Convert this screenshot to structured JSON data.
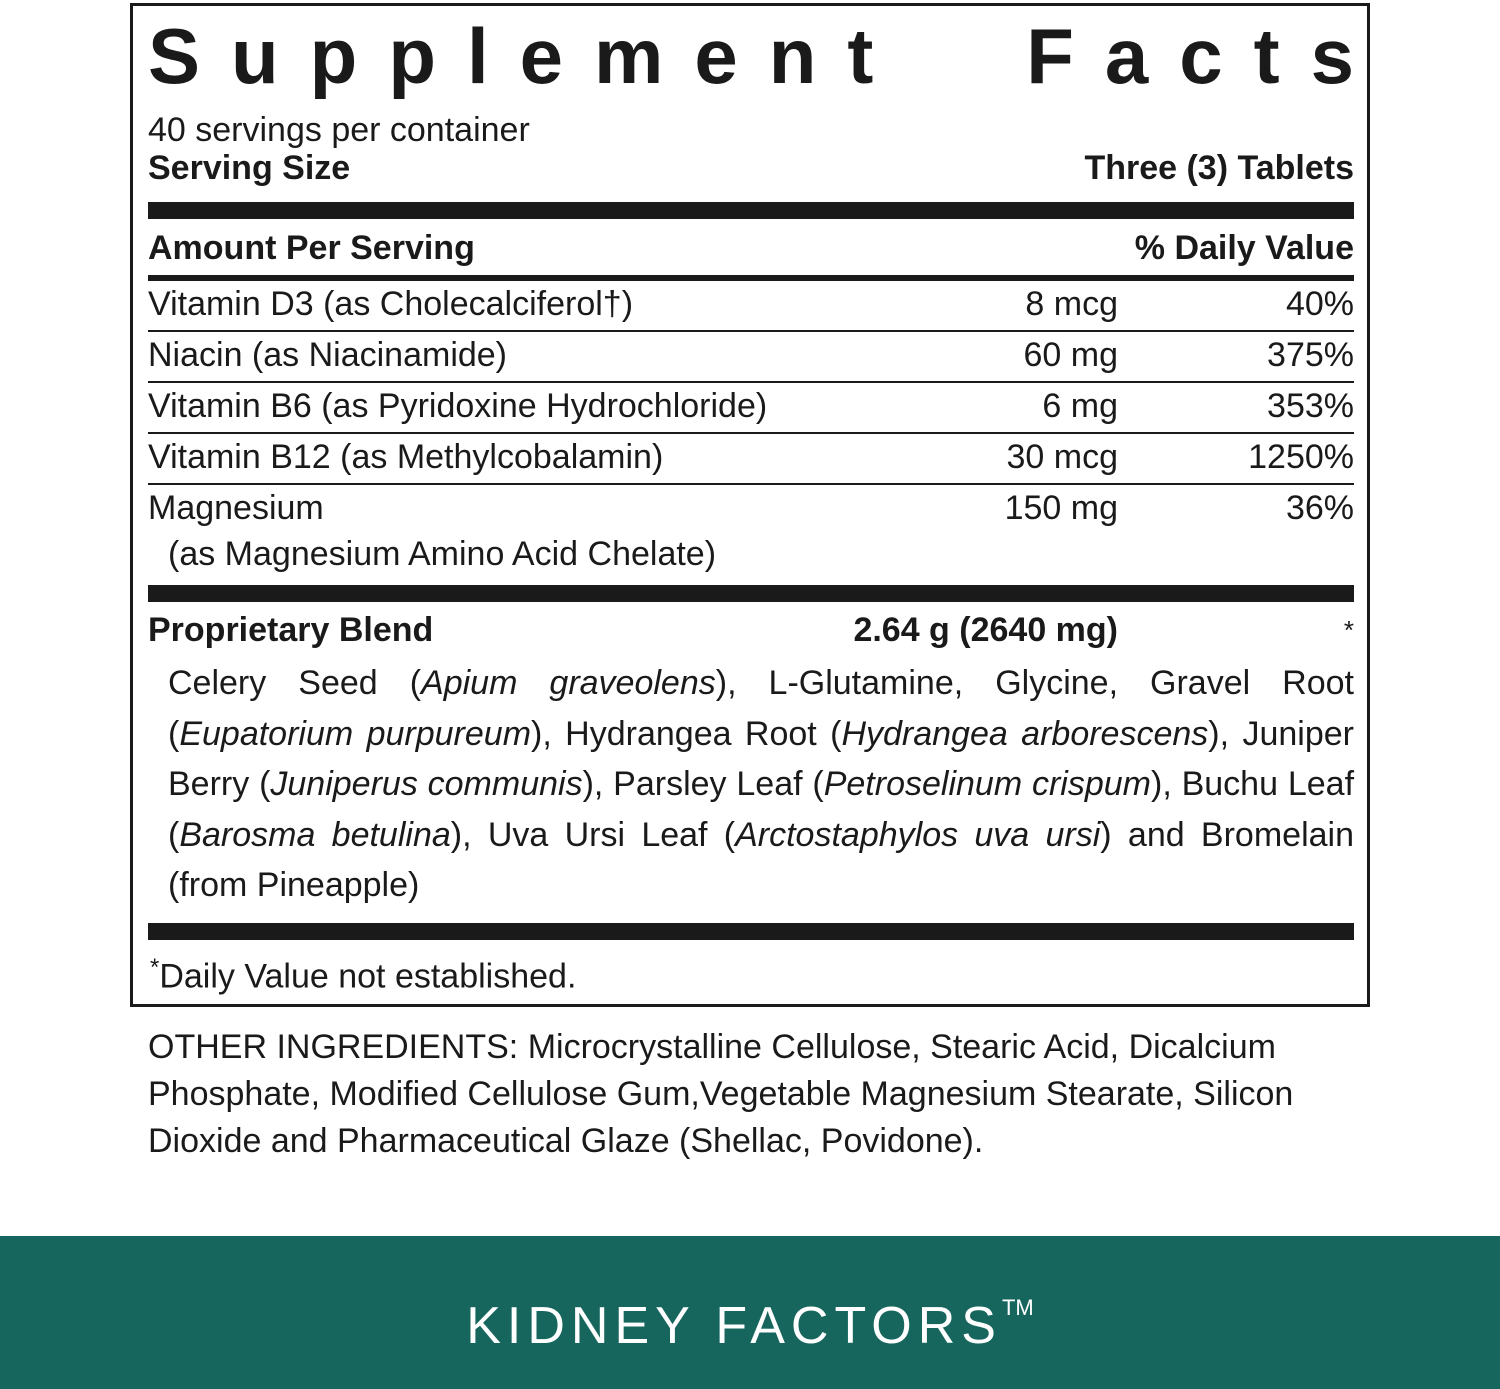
{
  "panel": {
    "title": "Supplement Facts",
    "servings_per_container": "40 servings per container",
    "serving_size_label": "Serving Size",
    "serving_size_value": "Three (3) Tablets",
    "amount_per_serving": "Amount Per Serving",
    "daily_value_header": "% Daily Value",
    "nutrients": [
      {
        "name": "Vitamin D3 (as Cholecalciferol†)",
        "amount": "8 mcg",
        "dv": "40%"
      },
      {
        "name": "Niacin (as Niacinamide)",
        "amount": "60 mg",
        "dv": "375%"
      },
      {
        "name": "Vitamin B6 (as Pyridoxine Hydrochloride)",
        "amount": "6 mg",
        "dv": "353%"
      },
      {
        "name": "Vitamin B12 (as Methylcobalamin)",
        "amount": "30 mcg",
        "dv": "1250%"
      },
      {
        "name": "Magnesium",
        "name_sub": "(as Magnesium Amino Acid Chelate)",
        "amount": "150 mg",
        "dv": "36%"
      }
    ],
    "blend": {
      "name": "Proprietary Blend",
      "amount": "2.64 g (2640 mg)",
      "dv": "*",
      "ingredients": [
        {
          "text": "Celery Seed (",
          "italic": false
        },
        {
          "text": "Apium graveolens",
          "italic": true
        },
        {
          "text": "), L-Glutamine, Glycine, Gravel Root (",
          "italic": false
        },
        {
          "text": "Eupatorium purpureum",
          "italic": true
        },
        {
          "text": "), Hydrangea Root (",
          "italic": false
        },
        {
          "text": "Hydrangea arborescens",
          "italic": true
        },
        {
          "text": "), Juniper Berry (",
          "italic": false
        },
        {
          "text": "Juniperus communis",
          "italic": true
        },
        {
          "text": "), Parsley Leaf (",
          "italic": false
        },
        {
          "text": "Petroselinum crispum",
          "italic": true
        },
        {
          "text": "), Buchu Leaf (",
          "italic": false
        },
        {
          "text": "Barosma betulina",
          "italic": true
        },
        {
          "text": "), Uva Ursi Leaf (",
          "italic": false
        },
        {
          "text": "Arctostaphylos uva ursi",
          "italic": true
        },
        {
          "text": ") and Bromelain (from Pineapple)",
          "italic": false
        }
      ]
    },
    "footnote_mark": "*",
    "footnote": "Daily Value not established."
  },
  "other_ingredients": "OTHER INGREDIENTS: Microcrystalline Cellulose, Stearic Acid, Dicalcium Phosphate, Modified Cellulose Gum,Vegetable Magnesium Stearate, Silicon Dioxide and Pharmaceutical Glaze (Shellac, Povidone).",
  "brand": {
    "name": "KIDNEY FACTORS",
    "trademark": "TM",
    "band_color": "#16665e"
  }
}
